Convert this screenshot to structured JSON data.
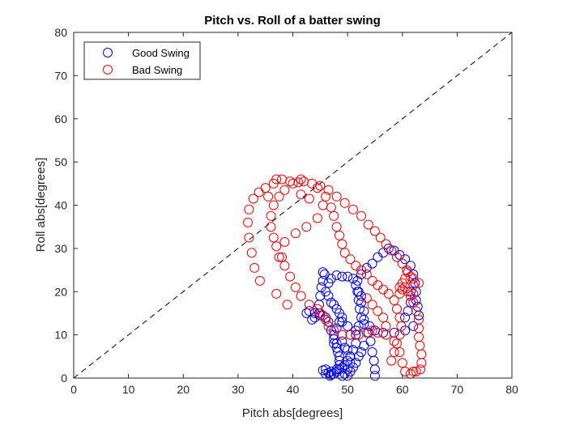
{
  "chart_data": {
    "type": "scatter",
    "title": "Pitch vs. Roll of a batter swing",
    "xlabel": "Pitch abs[degrees]",
    "ylabel": "Roll abs[degrees]",
    "xlim": [
      0,
      80
    ],
    "ylim": [
      0,
      80
    ],
    "xticks": [
      "0",
      "10",
      "20",
      "30",
      "40",
      "50",
      "60",
      "70",
      "80"
    ],
    "yticks": [
      "0",
      "10",
      "20",
      "30",
      "40",
      "50",
      "60",
      "70",
      "80"
    ],
    "grid": false,
    "legend_position": "top-left",
    "reference_line": {
      "style": "dashed",
      "color": "#000000",
      "from": [
        0,
        0
      ],
      "to": [
        80,
        80
      ]
    },
    "series": [
      {
        "name": "Good Swing",
        "color": "#0000ff",
        "marker": "circle-open",
        "points": [
          [
            55.0,
            0.5
          ],
          [
            55.0,
            2.0
          ],
          [
            54.8,
            4.0
          ],
          [
            54.5,
            6.0
          ],
          [
            54.2,
            8.5
          ],
          [
            53.8,
            10.5
          ],
          [
            53.0,
            12.5
          ],
          [
            52.5,
            14.0
          ],
          [
            52.2,
            16.0
          ],
          [
            52.0,
            18.0
          ],
          [
            51.8,
            20.0
          ],
          [
            51.8,
            22.5
          ],
          [
            52.5,
            24.0
          ],
          [
            53.5,
            25.5
          ],
          [
            54.5,
            26.5
          ],
          [
            55.5,
            28.0
          ],
          [
            56.5,
            29.0
          ],
          [
            57.5,
            30.0
          ],
          [
            58.5,
            29.5
          ],
          [
            59.5,
            28.5
          ],
          [
            60.5,
            27.5
          ],
          [
            61.5,
            26.0
          ],
          [
            62.0,
            24.0
          ],
          [
            62.3,
            22.0
          ],
          [
            62.5,
            20.0
          ],
          [
            62.5,
            18.0
          ],
          [
            62.8,
            16.5
          ],
          [
            63.0,
            14.5
          ],
          [
            62.0,
            12.0
          ],
          [
            60.5,
            11.0
          ],
          [
            58.5,
            10.5
          ],
          [
            56.5,
            10.5
          ],
          [
            55.0,
            11.0
          ],
          [
            54.0,
            12.0
          ],
          [
            45.5,
            24.5
          ],
          [
            45.8,
            24.0
          ],
          [
            45.5,
            22.5
          ],
          [
            45.2,
            21.0
          ],
          [
            45.0,
            19.0
          ],
          [
            44.8,
            17.0
          ],
          [
            44.8,
            15.0
          ],
          [
            44.0,
            14.0
          ],
          [
            43.5,
            13.5
          ],
          [
            42.5,
            15.0
          ],
          [
            43.0,
            15.5
          ],
          [
            44.0,
            15.0
          ],
          [
            45.0,
            14.5
          ],
          [
            46.0,
            14.0
          ],
          [
            46.5,
            13.0
          ],
          [
            47.0,
            11.0
          ],
          [
            47.5,
            9.0
          ],
          [
            47.5,
            8.0
          ],
          [
            48.0,
            7.0
          ],
          [
            48.2,
            6.0
          ],
          [
            48.5,
            5.0
          ],
          [
            48.5,
            4.0
          ],
          [
            48.5,
            3.0
          ],
          [
            48.5,
            2.0
          ],
          [
            48.0,
            1.5
          ],
          [
            47.5,
            1.0
          ],
          [
            47.0,
            0.8
          ],
          [
            46.8,
            0.5
          ],
          [
            46.5,
            1.2
          ],
          [
            46.0,
            2.0
          ],
          [
            45.5,
            1.8
          ],
          [
            46.0,
            1.0
          ],
          [
            47.0,
            1.5
          ],
          [
            48.0,
            2.0
          ],
          [
            49.0,
            2.5
          ],
          [
            49.5,
            3.0
          ],
          [
            50.0,
            4.0
          ],
          [
            50.5,
            5.0
          ],
          [
            50.0,
            6.5
          ],
          [
            49.5,
            7.0
          ],
          [
            49.0,
            8.5
          ],
          [
            50.5,
            10.0
          ],
          [
            51.5,
            11.0
          ],
          [
            50.0,
            12.0
          ],
          [
            49.0,
            13.0
          ],
          [
            48.5,
            15.0
          ],
          [
            48.0,
            16.0
          ],
          [
            47.5,
            17.0
          ],
          [
            47.0,
            17.5
          ],
          [
            46.5,
            19.0
          ],
          [
            46.0,
            20.0
          ],
          [
            46.5,
            22.0
          ],
          [
            47.0,
            23.0
          ],
          [
            48.0,
            23.8
          ],
          [
            49.0,
            23.5
          ],
          [
            50.0,
            23.5
          ],
          [
            51.0,
            23.0
          ],
          [
            51.5,
            21.5
          ],
          [
            52.0,
            20.0
          ],
          [
            52.5,
            19.0
          ],
          [
            52.5,
            17.5
          ],
          [
            53.0,
            15.5
          ],
          [
            53.0,
            13.5
          ],
          [
            52.0,
            12.0
          ],
          [
            51.5,
            10.0
          ],
          [
            51.5,
            8.0
          ],
          [
            51.0,
            6.5
          ],
          [
            50.5,
            5.0
          ],
          [
            50.5,
            3.5
          ],
          [
            50.0,
            2.0
          ],
          [
            49.5,
            1.0
          ],
          [
            49.0,
            0.5
          ],
          [
            50.0,
            0.5
          ],
          [
            50.5,
            1.5
          ],
          [
            51.0,
            2.5
          ],
          [
            51.5,
            3.5
          ],
          [
            52.0,
            5.0
          ],
          [
            52.5,
            6.0
          ],
          [
            53.0,
            7.5
          ],
          [
            48.0,
            8.0
          ],
          [
            47.5,
            10.0
          ],
          [
            48.0,
            11.5
          ],
          [
            48.5,
            13.0
          ],
          [
            49.0,
            14.0
          ],
          [
            60.5,
            14.0
          ],
          [
            61.0,
            15.5
          ],
          [
            61.5,
            17.5
          ],
          [
            61.5,
            20.0
          ]
        ]
      },
      {
        "name": "Bad Swing",
        "color": "#ff0000",
        "marker": "circle-open",
        "points": [
          [
            34.0,
            22.5
          ],
          [
            33.0,
            25.5
          ],
          [
            32.5,
            29.0
          ],
          [
            32.0,
            32.5
          ],
          [
            31.8,
            36.0
          ],
          [
            32.0,
            39.0
          ],
          [
            32.8,
            41.5
          ],
          [
            33.8,
            43.0
          ],
          [
            35.0,
            44.0
          ],
          [
            36.5,
            45.0
          ],
          [
            38.0,
            46.0
          ],
          [
            39.5,
            45.5
          ],
          [
            41.0,
            45.3
          ],
          [
            42.0,
            45.5
          ],
          [
            43.5,
            45.0
          ],
          [
            45.0,
            44.5
          ],
          [
            46.5,
            43.5
          ],
          [
            48.0,
            42.0
          ],
          [
            49.5,
            40.5
          ],
          [
            51.0,
            39.0
          ],
          [
            52.5,
            37.5
          ],
          [
            53.8,
            35.5
          ],
          [
            55.0,
            34.0
          ],
          [
            56.0,
            32.5
          ],
          [
            57.0,
            31.0
          ],
          [
            58.0,
            29.5
          ],
          [
            59.0,
            28.0
          ],
          [
            60.0,
            26.5
          ],
          [
            60.8,
            25.0
          ],
          [
            61.5,
            23.5
          ],
          [
            62.0,
            21.5
          ],
          [
            62.0,
            19.5
          ],
          [
            62.0,
            17.5
          ],
          [
            62.5,
            15.5
          ],
          [
            63.0,
            13.5
          ],
          [
            63.0,
            11.5
          ],
          [
            63.0,
            9.5
          ],
          [
            63.2,
            7.5
          ],
          [
            63.5,
            5.5
          ],
          [
            63.5,
            3.5
          ],
          [
            63.3,
            2.0
          ],
          [
            62.5,
            1.5
          ],
          [
            61.5,
            1.0
          ],
          [
            60.5,
            1.5
          ],
          [
            62.0,
            1.5
          ],
          [
            60.0,
            3.5
          ],
          [
            59.5,
            6.0
          ],
          [
            58.5,
            8.5
          ],
          [
            57.0,
            10.0
          ],
          [
            55.5,
            10.5
          ],
          [
            54.5,
            11.0
          ],
          [
            53.5,
            10.5
          ],
          [
            52.0,
            10.0
          ],
          [
            50.5,
            10.0
          ],
          [
            49.0,
            10.0
          ],
          [
            47.5,
            11.0
          ],
          [
            46.5,
            12.0
          ],
          [
            46.0,
            13.5
          ],
          [
            45.5,
            14.5
          ],
          [
            45.0,
            15.0
          ],
          [
            44.5,
            16.0
          ],
          [
            43.0,
            17.0
          ],
          [
            41.5,
            19.0
          ],
          [
            40.5,
            21.0
          ],
          [
            39.5,
            23.5
          ],
          [
            38.5,
            26.0
          ],
          [
            37.5,
            28.0
          ],
          [
            37.0,
            30.5
          ],
          [
            36.5,
            32.5
          ],
          [
            36.0,
            35.0
          ],
          [
            36.0,
            37.5
          ],
          [
            36.5,
            40.0
          ],
          [
            37.5,
            42.0
          ],
          [
            38.5,
            43.5
          ],
          [
            40.0,
            45.0
          ],
          [
            41.5,
            46.0
          ],
          [
            44.5,
            44.0
          ],
          [
            46.0,
            42.0
          ],
          [
            47.0,
            39.5
          ],
          [
            47.5,
            37.5
          ],
          [
            48.0,
            35.0
          ],
          [
            48.5,
            33.0
          ],
          [
            49.0,
            31.0
          ],
          [
            49.5,
            29.0
          ],
          [
            50.5,
            27.5
          ],
          [
            51.5,
            26.0
          ],
          [
            52.5,
            25.0
          ],
          [
            53.5,
            24.0
          ],
          [
            54.5,
            22.5
          ],
          [
            55.5,
            21.5
          ],
          [
            56.5,
            20.5
          ],
          [
            57.5,
            19.5
          ],
          [
            58.5,
            18.0
          ],
          [
            59.0,
            16.0
          ],
          [
            59.5,
            14.0
          ],
          [
            59.8,
            12.0
          ],
          [
            59.5,
            10.0
          ],
          [
            59.0,
            8.0
          ],
          [
            58.5,
            6.0
          ],
          [
            58.0,
            4.0
          ],
          [
            59.5,
            21.0
          ],
          [
            60.0,
            22.0
          ],
          [
            60.5,
            21.0
          ],
          [
            61.0,
            20.0
          ],
          [
            61.5,
            19.0
          ],
          [
            60.0,
            20.5
          ],
          [
            59.5,
            19.5
          ],
          [
            60.5,
            23.0
          ],
          [
            61.0,
            24.5
          ],
          [
            62.0,
            23.0
          ],
          [
            63.0,
            22.0
          ],
          [
            57.0,
            12.0
          ],
          [
            56.5,
            14.0
          ],
          [
            55.5,
            15.5
          ],
          [
            54.5,
            17.0
          ],
          [
            53.5,
            18.5
          ],
          [
            39.0,
            17.0
          ],
          [
            37.0,
            19.5
          ],
          [
            38.0,
            28.0
          ],
          [
            38.5,
            31.5
          ],
          [
            40.5,
            33.5
          ],
          [
            42.5,
            35.0
          ],
          [
            44.5,
            37.0
          ],
          [
            45.5,
            40.0
          ],
          [
            43.0,
            41.5
          ],
          [
            41.5,
            42.5
          ],
          [
            37.0,
            46.0
          ],
          [
            35.5,
            42.0
          ]
        ]
      }
    ]
  }
}
